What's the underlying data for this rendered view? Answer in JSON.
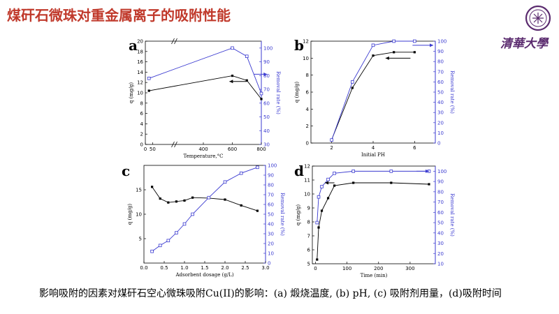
{
  "title": "煤矸石微珠对重金属离子的吸附性能",
  "caption": "影响吸附的因素对煤矸石空心微珠吸附Cu(II)的影响：(a) 煅烧温度, (b) pH, (c) 吸附剂用量，(d)吸附时间",
  "logo": {
    "text": "清華大學"
  },
  "colors": {
    "title": "#c0392b",
    "primary": "#000000",
    "secondary": "#3a3ad0"
  },
  "chart_data": [
    {
      "id": "a",
      "type": "line",
      "panel_label": "a",
      "xlabel": "Temperature,°C",
      "ylabel": "q (mg/g)",
      "ylabel_right": "Removal rate (%)",
      "xlim": [
        0,
        800
      ],
      "ylim": [
        0,
        20
      ],
      "ylim_right": [
        30,
        105
      ],
      "axis_break": true,
      "xticks": [
        {
          "v": 0,
          "label": "0"
        },
        {
          "v": 50,
          "label": "50"
        },
        {
          "v": 400,
          "label": "400"
        },
        {
          "v": 600,
          "label": "600"
        },
        {
          "v": 800,
          "label": "800"
        }
      ],
      "yticks": [
        0,
        2,
        4,
        6,
        8,
        10,
        12,
        14,
        16,
        18,
        20
      ],
      "yticks_right": [
        30,
        40,
        50,
        60,
        70,
        80,
        90,
        100
      ],
      "series": [
        {
          "axis": "left",
          "marker": "square",
          "x": [
            25,
            600,
            700,
            800
          ],
          "y": [
            10.4,
            13.3,
            12.4,
            8.8
          ]
        },
        {
          "axis": "right",
          "marker": "open-square",
          "x": [
            25,
            600,
            700,
            800
          ],
          "y": [
            78,
            100,
            94,
            67
          ]
        }
      ],
      "arrows": [
        {
          "axis": "left",
          "x": [
            700,
            580
          ],
          "y": [
            12.2,
            12.2
          ]
        },
        {
          "axis": "right",
          "x": [
            750,
            840
          ],
          "y": [
            81,
            81
          ]
        }
      ]
    },
    {
      "id": "b",
      "type": "line",
      "panel_label": "b",
      "xlabel": "Initial PH",
      "ylabel": "q (mg/g)",
      "ylabel_right": "Removal rate (%)",
      "xlim": [
        1,
        7
      ],
      "ylim": [
        0,
        12
      ],
      "ylim_right": [
        0,
        100
      ],
      "xticks": [
        {
          "v": 2,
          "label": "2"
        },
        {
          "v": 4,
          "label": "4"
        },
        {
          "v": 6,
          "label": "6"
        }
      ],
      "yticks": [
        0,
        2,
        4,
        6,
        8,
        10,
        12
      ],
      "yticks_right": [
        0,
        10,
        20,
        30,
        40,
        50,
        60,
        70,
        80,
        90,
        100
      ],
      "series": [
        {
          "axis": "left",
          "marker": "square",
          "x": [
            2,
            3,
            4,
            5,
            6
          ],
          "y": [
            0.4,
            6.5,
            10.3,
            10.7,
            10.7
          ]
        },
        {
          "axis": "right",
          "marker": "open-square",
          "x": [
            2,
            3,
            4,
            5,
            6
          ],
          "y": [
            3,
            60,
            96,
            100,
            100
          ]
        }
      ],
      "arrows": [
        {
          "axis": "left",
          "x": [
            5.8,
            4.6
          ],
          "y": [
            10.0,
            10.0
          ]
        },
        {
          "axis": "right",
          "x": [
            5.9,
            6.9
          ],
          "y": [
            96,
            96
          ]
        }
      ]
    },
    {
      "id": "c",
      "type": "line",
      "panel_label": "c",
      "xlabel": "Adsorbent dosage (g/L)",
      "ylabel": "q (mg/g)",
      "ylabel_right": "Removal rate (%)",
      "xlim": [
        0,
        3.0
      ],
      "ylim": [
        0,
        20
      ],
      "ylim_right": [
        0,
        100
      ],
      "xticks": [
        {
          "v": 0,
          "label": "0.0"
        },
        {
          "v": 0.5,
          "label": "0.5"
        },
        {
          "v": 1.0,
          "label": "1.0"
        },
        {
          "v": 1.5,
          "label": "1.5"
        },
        {
          "v": 2.0,
          "label": "2.0"
        },
        {
          "v": 2.5,
          "label": "2.5"
        },
        {
          "v": 3.0,
          "label": "3.0"
        }
      ],
      "yticks": [
        5,
        10,
        15
      ],
      "yticks_right": [
        0,
        10,
        20,
        30,
        40,
        50,
        60,
        70,
        80,
        90,
        100
      ],
      "series": [
        {
          "axis": "left",
          "marker": "square",
          "x": [
            0.2,
            0.4,
            0.6,
            0.8,
            1.0,
            1.2,
            1.6,
            2.0,
            2.4,
            2.8
          ],
          "y": [
            15.6,
            13.2,
            12.4,
            12.6,
            12.8,
            13.4,
            13.3,
            13.0,
            11.8,
            10.7
          ]
        },
        {
          "axis": "right",
          "marker": "open-square",
          "x": [
            0.2,
            0.4,
            0.6,
            0.8,
            1.0,
            1.2,
            1.6,
            2.0,
            2.4,
            2.8
          ],
          "y": [
            12,
            18,
            23,
            31,
            40,
            50,
            67,
            83,
            92,
            98
          ]
        }
      ],
      "arrows": []
    },
    {
      "id": "d",
      "type": "line",
      "panel_label": "d",
      "xlabel": "Time (min)",
      "ylabel": "q (mg/g)",
      "ylabel_right": "Removal rate (%)",
      "xlim": [
        -10,
        380
      ],
      "ylim": [
        5,
        12
      ],
      "ylim_right": [
        10,
        105
      ],
      "xticks": [
        {
          "v": 0,
          "label": "0"
        },
        {
          "v": 100,
          "label": "100"
        },
        {
          "v": 200,
          "label": "200"
        },
        {
          "v": 300,
          "label": "300"
        }
      ],
      "yticks": [
        5,
        6,
        7,
        8,
        9,
        10,
        11,
        12
      ],
      "yticks_right": [
        10,
        20,
        30,
        40,
        50,
        60,
        70,
        80,
        90,
        100
      ],
      "series": [
        {
          "axis": "left",
          "marker": "square",
          "x": [
            5,
            10,
            20,
            40,
            60,
            120,
            240,
            360
          ],
          "y": [
            5.3,
            7.6,
            8.8,
            9.7,
            10.6,
            10.8,
            10.8,
            10.7
          ]
        },
        {
          "axis": "right",
          "marker": "open-square",
          "x": [
            5,
            10,
            20,
            40,
            60,
            120,
            240,
            360
          ],
          "y": [
            50,
            75,
            85,
            92,
            98,
            100,
            100,
            100
          ]
        }
      ],
      "arrows": [
        {
          "axis": "left",
          "x": [
            60,
            30
          ],
          "y": [
            10.8,
            10.8
          ]
        },
        {
          "axis": "right",
          "x": [
            320,
            360
          ],
          "y": [
            100,
            100
          ]
        }
      ]
    }
  ]
}
